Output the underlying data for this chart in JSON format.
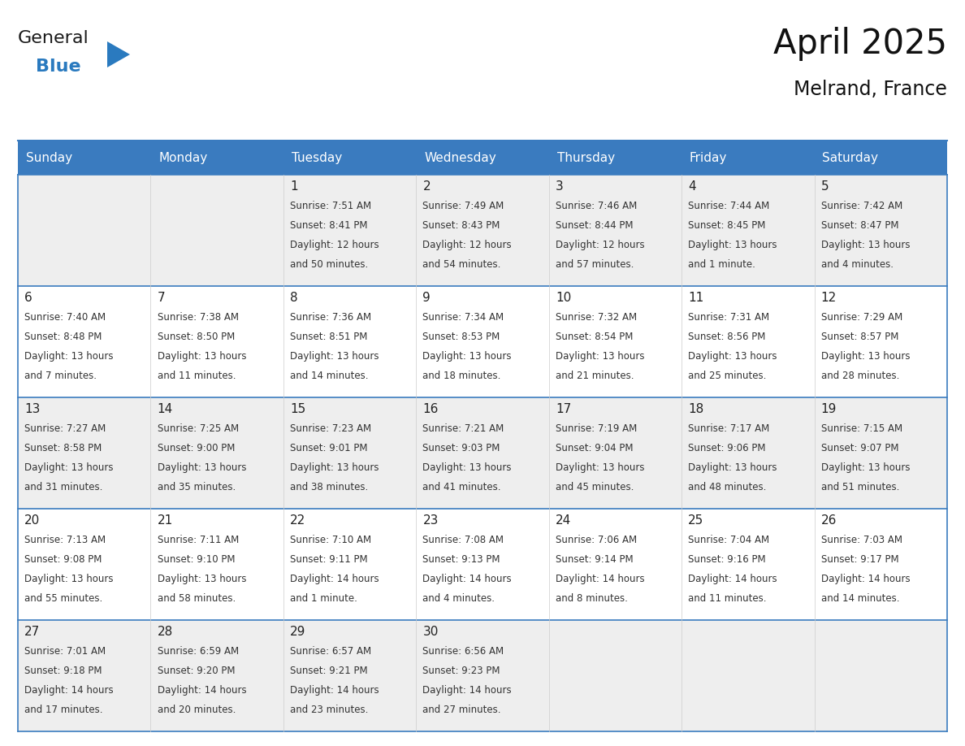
{
  "title": "April 2025",
  "subtitle": "Melrand, France",
  "header_color": "#3a7bbf",
  "header_text_color": "#ffffff",
  "day_headers": [
    "Sunday",
    "Monday",
    "Tuesday",
    "Wednesday",
    "Thursday",
    "Friday",
    "Saturday"
  ],
  "days": [
    {
      "day": null,
      "sunrise": null,
      "sunset": null,
      "daylight_line1": null,
      "daylight_line2": null
    },
    {
      "day": null,
      "sunrise": null,
      "sunset": null,
      "daylight_line1": null,
      "daylight_line2": null
    },
    {
      "day": 1,
      "sunrise": "Sunrise: 7:51 AM",
      "sunset": "Sunset: 8:41 PM",
      "daylight_line1": "Daylight: 12 hours",
      "daylight_line2": "and 50 minutes."
    },
    {
      "day": 2,
      "sunrise": "Sunrise: 7:49 AM",
      "sunset": "Sunset: 8:43 PM",
      "daylight_line1": "Daylight: 12 hours",
      "daylight_line2": "and 54 minutes."
    },
    {
      "day": 3,
      "sunrise": "Sunrise: 7:46 AM",
      "sunset": "Sunset: 8:44 PM",
      "daylight_line1": "Daylight: 12 hours",
      "daylight_line2": "and 57 minutes."
    },
    {
      "day": 4,
      "sunrise": "Sunrise: 7:44 AM",
      "sunset": "Sunset: 8:45 PM",
      "daylight_line1": "Daylight: 13 hours",
      "daylight_line2": "and 1 minute."
    },
    {
      "day": 5,
      "sunrise": "Sunrise: 7:42 AM",
      "sunset": "Sunset: 8:47 PM",
      "daylight_line1": "Daylight: 13 hours",
      "daylight_line2": "and 4 minutes."
    },
    {
      "day": 6,
      "sunrise": "Sunrise: 7:40 AM",
      "sunset": "Sunset: 8:48 PM",
      "daylight_line1": "Daylight: 13 hours",
      "daylight_line2": "and 7 minutes."
    },
    {
      "day": 7,
      "sunrise": "Sunrise: 7:38 AM",
      "sunset": "Sunset: 8:50 PM",
      "daylight_line1": "Daylight: 13 hours",
      "daylight_line2": "and 11 minutes."
    },
    {
      "day": 8,
      "sunrise": "Sunrise: 7:36 AM",
      "sunset": "Sunset: 8:51 PM",
      "daylight_line1": "Daylight: 13 hours",
      "daylight_line2": "and 14 minutes."
    },
    {
      "day": 9,
      "sunrise": "Sunrise: 7:34 AM",
      "sunset": "Sunset: 8:53 PM",
      "daylight_line1": "Daylight: 13 hours",
      "daylight_line2": "and 18 minutes."
    },
    {
      "day": 10,
      "sunrise": "Sunrise: 7:32 AM",
      "sunset": "Sunset: 8:54 PM",
      "daylight_line1": "Daylight: 13 hours",
      "daylight_line2": "and 21 minutes."
    },
    {
      "day": 11,
      "sunrise": "Sunrise: 7:31 AM",
      "sunset": "Sunset: 8:56 PM",
      "daylight_line1": "Daylight: 13 hours",
      "daylight_line2": "and 25 minutes."
    },
    {
      "day": 12,
      "sunrise": "Sunrise: 7:29 AM",
      "sunset": "Sunset: 8:57 PM",
      "daylight_line1": "Daylight: 13 hours",
      "daylight_line2": "and 28 minutes."
    },
    {
      "day": 13,
      "sunrise": "Sunrise: 7:27 AM",
      "sunset": "Sunset: 8:58 PM",
      "daylight_line1": "Daylight: 13 hours",
      "daylight_line2": "and 31 minutes."
    },
    {
      "day": 14,
      "sunrise": "Sunrise: 7:25 AM",
      "sunset": "Sunset: 9:00 PM",
      "daylight_line1": "Daylight: 13 hours",
      "daylight_line2": "and 35 minutes."
    },
    {
      "day": 15,
      "sunrise": "Sunrise: 7:23 AM",
      "sunset": "Sunset: 9:01 PM",
      "daylight_line1": "Daylight: 13 hours",
      "daylight_line2": "and 38 minutes."
    },
    {
      "day": 16,
      "sunrise": "Sunrise: 7:21 AM",
      "sunset": "Sunset: 9:03 PM",
      "daylight_line1": "Daylight: 13 hours",
      "daylight_line2": "and 41 minutes."
    },
    {
      "day": 17,
      "sunrise": "Sunrise: 7:19 AM",
      "sunset": "Sunset: 9:04 PM",
      "daylight_line1": "Daylight: 13 hours",
      "daylight_line2": "and 45 minutes."
    },
    {
      "day": 18,
      "sunrise": "Sunrise: 7:17 AM",
      "sunset": "Sunset: 9:06 PM",
      "daylight_line1": "Daylight: 13 hours",
      "daylight_line2": "and 48 minutes."
    },
    {
      "day": 19,
      "sunrise": "Sunrise: 7:15 AM",
      "sunset": "Sunset: 9:07 PM",
      "daylight_line1": "Daylight: 13 hours",
      "daylight_line2": "and 51 minutes."
    },
    {
      "day": 20,
      "sunrise": "Sunrise: 7:13 AM",
      "sunset": "Sunset: 9:08 PM",
      "daylight_line1": "Daylight: 13 hours",
      "daylight_line2": "and 55 minutes."
    },
    {
      "day": 21,
      "sunrise": "Sunrise: 7:11 AM",
      "sunset": "Sunset: 9:10 PM",
      "daylight_line1": "Daylight: 13 hours",
      "daylight_line2": "and 58 minutes."
    },
    {
      "day": 22,
      "sunrise": "Sunrise: 7:10 AM",
      "sunset": "Sunset: 9:11 PM",
      "daylight_line1": "Daylight: 14 hours",
      "daylight_line2": "and 1 minute."
    },
    {
      "day": 23,
      "sunrise": "Sunrise: 7:08 AM",
      "sunset": "Sunset: 9:13 PM",
      "daylight_line1": "Daylight: 14 hours",
      "daylight_line2": "and 4 minutes."
    },
    {
      "day": 24,
      "sunrise": "Sunrise: 7:06 AM",
      "sunset": "Sunset: 9:14 PM",
      "daylight_line1": "Daylight: 14 hours",
      "daylight_line2": "and 8 minutes."
    },
    {
      "day": 25,
      "sunrise": "Sunrise: 7:04 AM",
      "sunset": "Sunset: 9:16 PM",
      "daylight_line1": "Daylight: 14 hours",
      "daylight_line2": "and 11 minutes."
    },
    {
      "day": 26,
      "sunrise": "Sunrise: 7:03 AM",
      "sunset": "Sunset: 9:17 PM",
      "daylight_line1": "Daylight: 14 hours",
      "daylight_line2": "and 14 minutes."
    },
    {
      "day": 27,
      "sunrise": "Sunrise: 7:01 AM",
      "sunset": "Sunset: 9:18 PM",
      "daylight_line1": "Daylight: 14 hours",
      "daylight_line2": "and 17 minutes."
    },
    {
      "day": 28,
      "sunrise": "Sunrise: 6:59 AM",
      "sunset": "Sunset: 9:20 PM",
      "daylight_line1": "Daylight: 14 hours",
      "daylight_line2": "and 20 minutes."
    },
    {
      "day": 29,
      "sunrise": "Sunrise: 6:57 AM",
      "sunset": "Sunset: 9:21 PM",
      "daylight_line1": "Daylight: 14 hours",
      "daylight_line2": "and 23 minutes."
    },
    {
      "day": 30,
      "sunrise": "Sunrise: 6:56 AM",
      "sunset": "Sunset: 9:23 PM",
      "daylight_line1": "Daylight: 14 hours",
      "daylight_line2": "and 27 minutes."
    }
  ],
  "num_weeks": 5,
  "logo_general_color": "#1a1a1a",
  "logo_blue_color": "#2a7abf",
  "grid_line_color": "#3a7bbf",
  "text_color": "#333333",
  "day_number_color": "#222222",
  "cell_text_size": 8.5,
  "day_num_size": 11,
  "row_bg_colors": [
    "#eeeeee",
    "#ffffff",
    "#eeeeee",
    "#ffffff",
    "#eeeeee"
  ]
}
